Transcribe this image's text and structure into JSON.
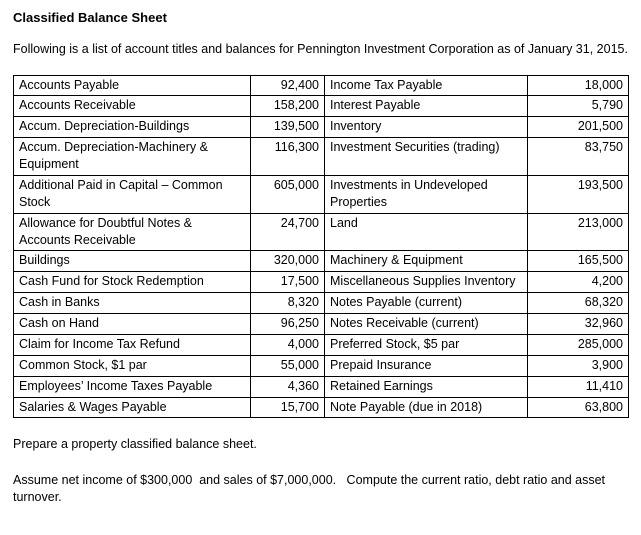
{
  "colors": {
    "background": "#ffffff",
    "text": "#000000",
    "table_border": "#000000"
  },
  "title": "Classified Balance Sheet",
  "intro": "Following is a list of account titles and balances for Pennington Investment Corporation as of January 31, 2015.",
  "table": {
    "rows": [
      {
        "left_account": "Accounts Payable",
        "left_amount": "92,400",
        "right_account": "Income Tax Payable",
        "right_amount": "18,000"
      },
      {
        "left_account": "Accounts Receivable",
        "left_amount": "158,200",
        "right_account": "Interest Payable",
        "right_amount": "5,790"
      },
      {
        "left_account": "Accum. Depreciation-Buildings",
        "left_amount": "139,500",
        "right_account": "Inventory",
        "right_amount": "201,500"
      },
      {
        "left_account": "Accum. Depreciation-Machinery & Equipment",
        "left_amount": "116,300",
        "right_account": "Investment Securities (trading)",
        "right_amount": "83,750"
      },
      {
        "left_account": "Additional Paid in Capital – Common Stock",
        "left_amount": "605,000",
        "right_account": "Investments in Undeveloped Properties",
        "right_amount": "193,500"
      },
      {
        "left_account": "Allowance for Doubtful Notes & Accounts Receivable",
        "left_amount": "24,700",
        "right_account": "Land",
        "right_amount": "213,000"
      },
      {
        "left_account": "Buildings",
        "left_amount": "320,000",
        "right_account": "Machinery & Equipment",
        "right_amount": "165,500"
      },
      {
        "left_account": "Cash Fund for Stock Redemption",
        "left_amount": "17,500",
        "right_account": "Miscellaneous Supplies Inventory",
        "right_amount": "4,200"
      },
      {
        "left_account": "Cash in Banks",
        "left_amount": "8,320",
        "right_account": "Notes Payable (current)",
        "right_amount": "68,320"
      },
      {
        "left_account": "Cash on Hand",
        "left_amount": "96,250",
        "right_account": "Notes Receivable (current)",
        "right_amount": "32,960"
      },
      {
        "left_account": "Claim for Income Tax Refund",
        "left_amount": "4,000",
        "right_account": "Preferred Stock, $5 par",
        "right_amount": "285,000"
      },
      {
        "left_account": "Common Stock, $1 par",
        "left_amount": "55,000",
        "right_account": "Prepaid Insurance",
        "right_amount": "3,900"
      },
      {
        "left_account": "Employees’ Income Taxes Payable",
        "left_amount": "4,360",
        "right_account": "Retained Earnings",
        "right_amount": "11,410"
      },
      {
        "left_account": "Salaries & Wages Payable",
        "left_amount": "15,700",
        "right_account": "Note Payable (due in 2018)",
        "right_amount": "63,800"
      }
    ]
  },
  "instructions": {
    "prepare": "Prepare a property classified balance sheet.",
    "compute": "Assume net income of $300,000  and sales of $7,000,000.   Compute the current ratio, debt ratio and asset turnover."
  }
}
